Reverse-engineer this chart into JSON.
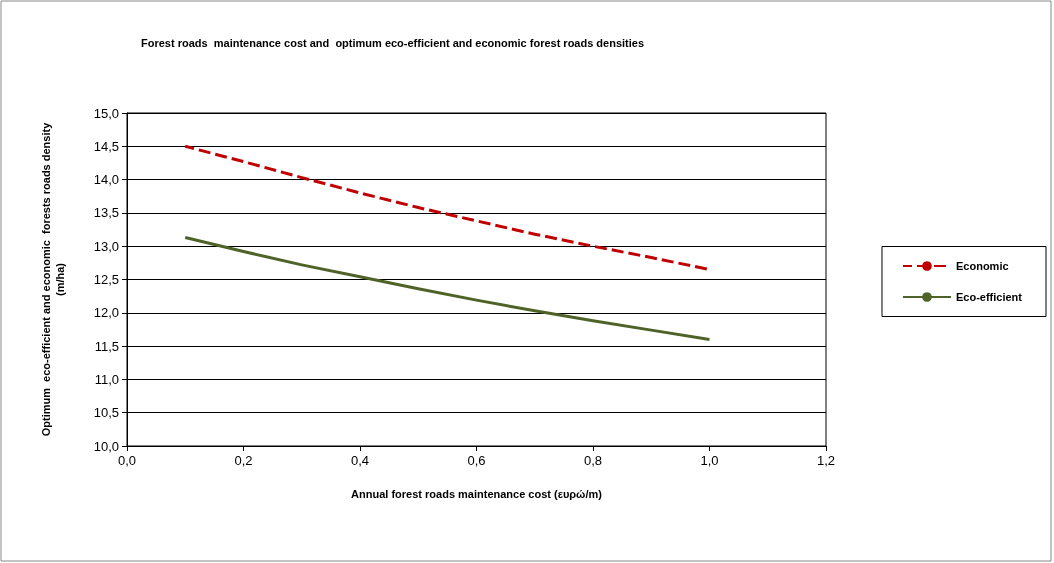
{
  "chart_data": {
    "type": "line",
    "title": "Forest roads  maintenance cost and  optimum eco-efficient and economic forest roads densities",
    "xlabel": "Annual forest roads maintenance cost (ευρώ/m)",
    "ylabel": "Optimum  eco-efficient and economic  forests roads density\n(m/ha)",
    "x": [
      0.1,
      0.2,
      0.3,
      0.4,
      0.5,
      0.6,
      0.7,
      0.8,
      0.9,
      1.0
    ],
    "series": [
      {
        "name": "Economic",
        "color": "#c00000",
        "line_style": "dashed",
        "values": [
          14.5,
          14.27,
          14.03,
          13.8,
          13.58,
          13.38,
          13.18,
          13.0,
          12.83,
          12.65
        ]
      },
      {
        "name": "Eco-efficient",
        "color": "#4f6228",
        "line_style": "solid",
        "values": [
          13.13,
          12.92,
          12.72,
          12.54,
          12.36,
          12.19,
          12.03,
          11.88,
          11.74,
          11.6
        ]
      }
    ],
    "xlim": [
      0,
      1.2
    ],
    "xticks": [
      {
        "value": 0,
        "label": "0,0"
      },
      {
        "value": 0.2,
        "label": "0,2"
      },
      {
        "value": 0.4,
        "label": "0,4"
      },
      {
        "value": 0.6,
        "label": "0,6"
      },
      {
        "value": 0.8,
        "label": "0,8"
      },
      {
        "value": 1.0,
        "label": "1,0"
      },
      {
        "value": 1.2,
        "label": "1,2"
      }
    ],
    "ylim": [
      10,
      15
    ],
    "yticks": [
      {
        "value": 10,
        "label": "10,0"
      },
      {
        "value": 10.5,
        "label": "10,5"
      },
      {
        "value": 11,
        "label": "11,0"
      },
      {
        "value": 11.5,
        "label": "11,5"
      },
      {
        "value": 12,
        "label": "12,0"
      },
      {
        "value": 12.5,
        "label": "12,5"
      },
      {
        "value": 13,
        "label": "13,0"
      },
      {
        "value": 13.5,
        "label": "13,5"
      },
      {
        "value": 14,
        "label": "14,0"
      },
      {
        "value": 14.5,
        "label": "14,5"
      },
      {
        "value": 15,
        "label": "15,0"
      }
    ],
    "grid": "y",
    "legend": "right",
    "marker": "none"
  }
}
